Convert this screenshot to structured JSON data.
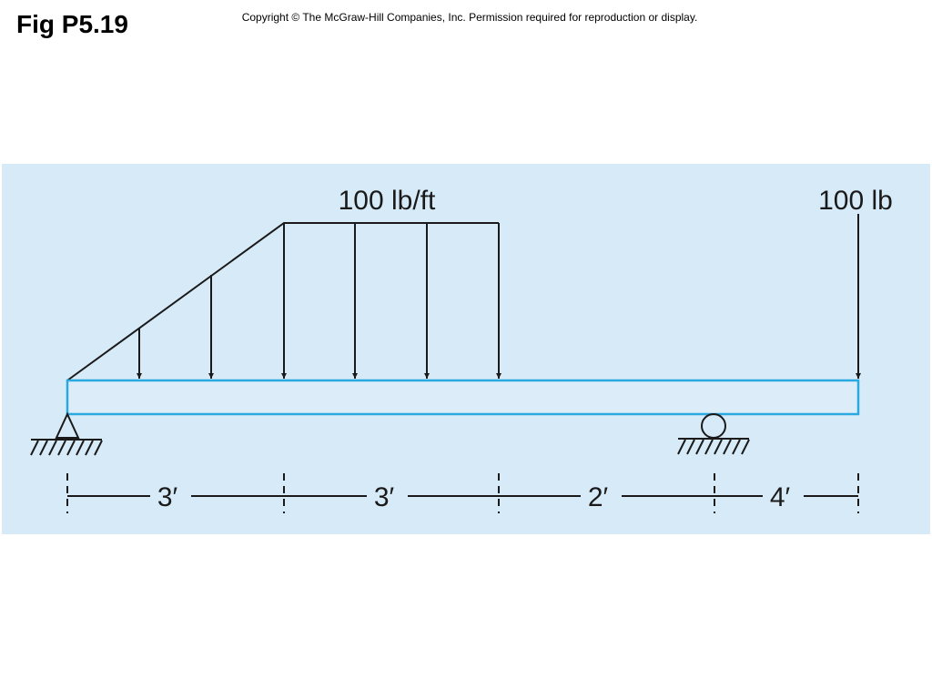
{
  "header": {
    "title": "Fig P5.19",
    "copyright": "Copyright © The McGraw-Hill Companies, Inc. Permission required for reproduction or display."
  },
  "figure": {
    "distributed_load": "100 lb/ft",
    "point_load": "100 lb",
    "dimensions": [
      "3′",
      "3′",
      "2′",
      "4′"
    ]
  }
}
